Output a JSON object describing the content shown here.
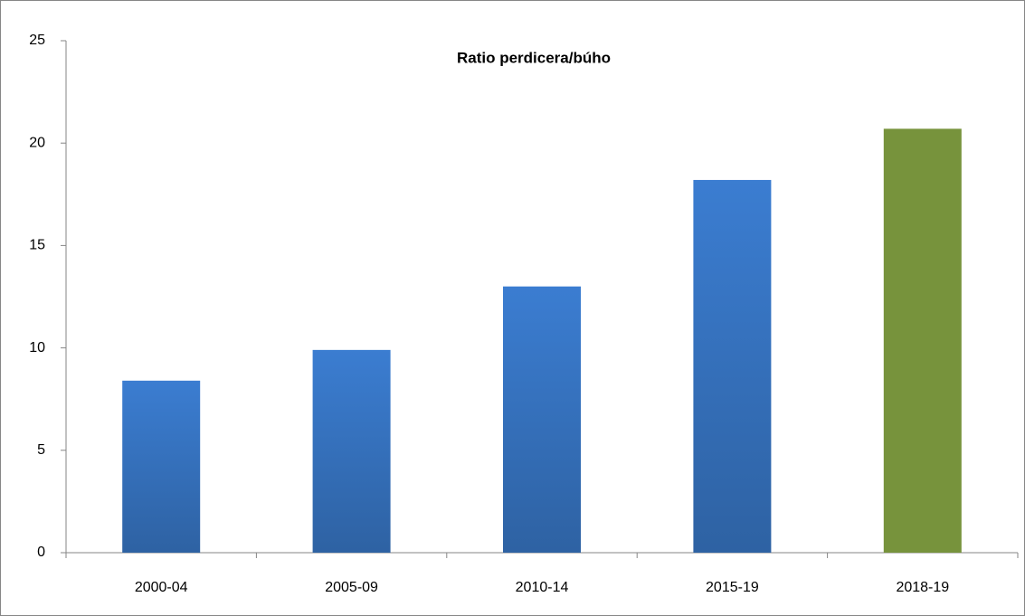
{
  "chart_data": {
    "type": "bar",
    "title": "Ratio perdicera/búho",
    "categories": [
      "2000-04",
      "2005-09",
      "2010-14",
      "2015-19",
      "2018-19"
    ],
    "values": [
      8.4,
      9.9,
      13.0,
      18.2,
      20.7
    ],
    "colors": [
      "#3b7dd1",
      "#3b7dd1",
      "#3b7dd1",
      "#3b7dd1",
      "#77933c"
    ],
    "ylim": [
      0,
      25
    ],
    "yticks": [
      0,
      5,
      10,
      15,
      20,
      25
    ],
    "grid": false
  }
}
